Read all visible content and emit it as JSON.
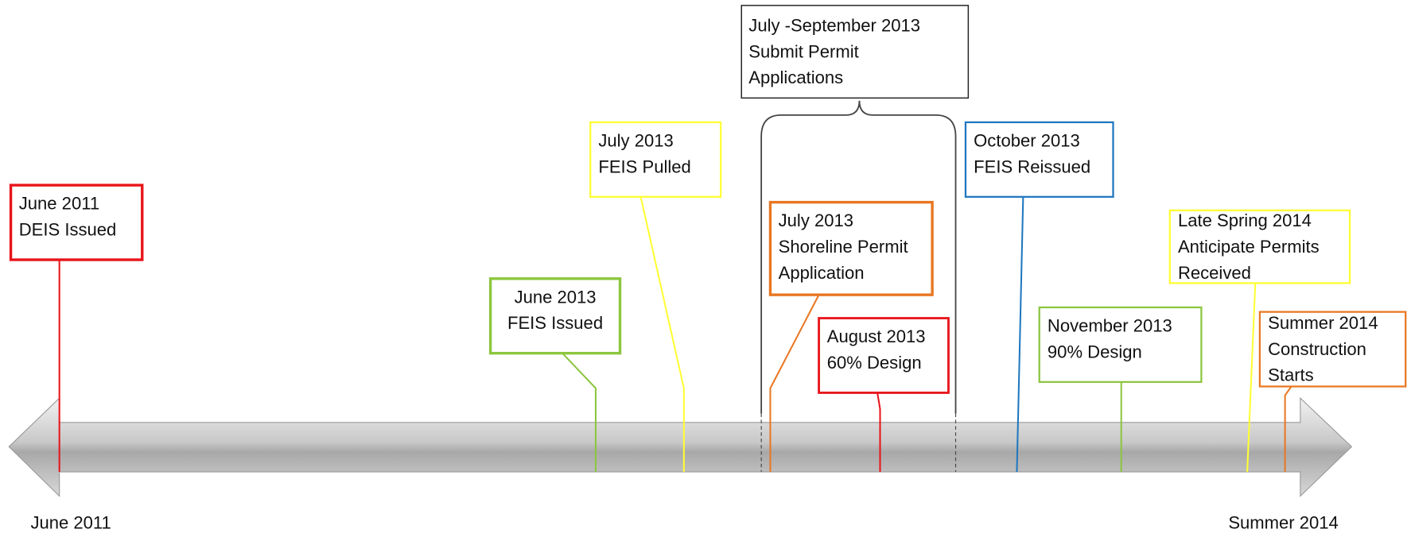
{
  "events": [
    {
      "lines": [
        "June 2011",
        "DEIS Issued"
      ],
      "color": "#e8141b"
    },
    {
      "lines": [
        "June 2013",
        "FEIS Issued"
      ],
      "color": "#8cc63f"
    },
    {
      "lines": [
        "July 2013",
        "FEIS Pulled"
      ],
      "color": "#ffff33"
    },
    {
      "lines": [
        "July 2013",
        "Shoreline Permit",
        "Application"
      ],
      "color": "#e87722"
    },
    {
      "lines": [
        "August 2013",
        "60% Design"
      ],
      "color": "#e8141b"
    },
    {
      "lines": [
        "October 2013",
        "FEIS Reissued"
      ],
      "color": "#1f77c0"
    },
    {
      "lines": [
        "November 2013",
        "90% Design"
      ],
      "color": "#8cc63f"
    },
    {
      "lines": [
        "Late Spring 2014",
        "Anticipate Permits",
        "Received"
      ],
      "color": "#ffff33"
    },
    {
      "lines": [
        "Summer 2014",
        "Construction",
        "Starts"
      ],
      "color": "#e87722"
    }
  ],
  "span": {
    "lines": [
      "July -September 2013",
      "Submit Permit",
      "Applications"
    ]
  },
  "axis": {
    "start": "June 2011",
    "end": "Summer 2014"
  }
}
